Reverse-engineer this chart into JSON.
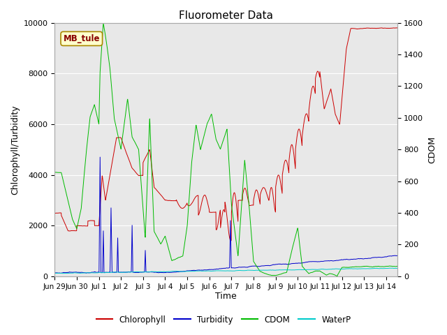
{
  "title": "Fluorometer Data",
  "xlabel": "Time",
  "ylabel_left": "Chlorophyll/Turbidity",
  "ylabel_right": "CDOM",
  "annotation": "MB_tule",
  "ylim_left": [
    0,
    10000
  ],
  "ylim_right": [
    0,
    1600
  ],
  "xtick_labels": [
    "Jun 29",
    "Jun 30",
    "Jul 1",
    "Jul 2",
    "Jul 3",
    "Jul 4",
    "Jul 5",
    "Jul 6",
    "Jul 7",
    "Jul 8",
    "Jul 9",
    "Jul 10",
    "Jul 11",
    "Jul 12",
    "Jul 13",
    "Jul 14"
  ],
  "colors": {
    "chlorophyll": "#cc0000",
    "turbidity": "#0000cc",
    "cdom": "#00bb00",
    "waterp": "#00cccc",
    "background": "#e8e8e8",
    "annotation_bg": "#ffffcc",
    "annotation_border": "#aa8800",
    "grid": "#ffffff"
  },
  "legend_entries": [
    "Chlorophyll",
    "Turbidity",
    "CDOM",
    "WaterP"
  ]
}
